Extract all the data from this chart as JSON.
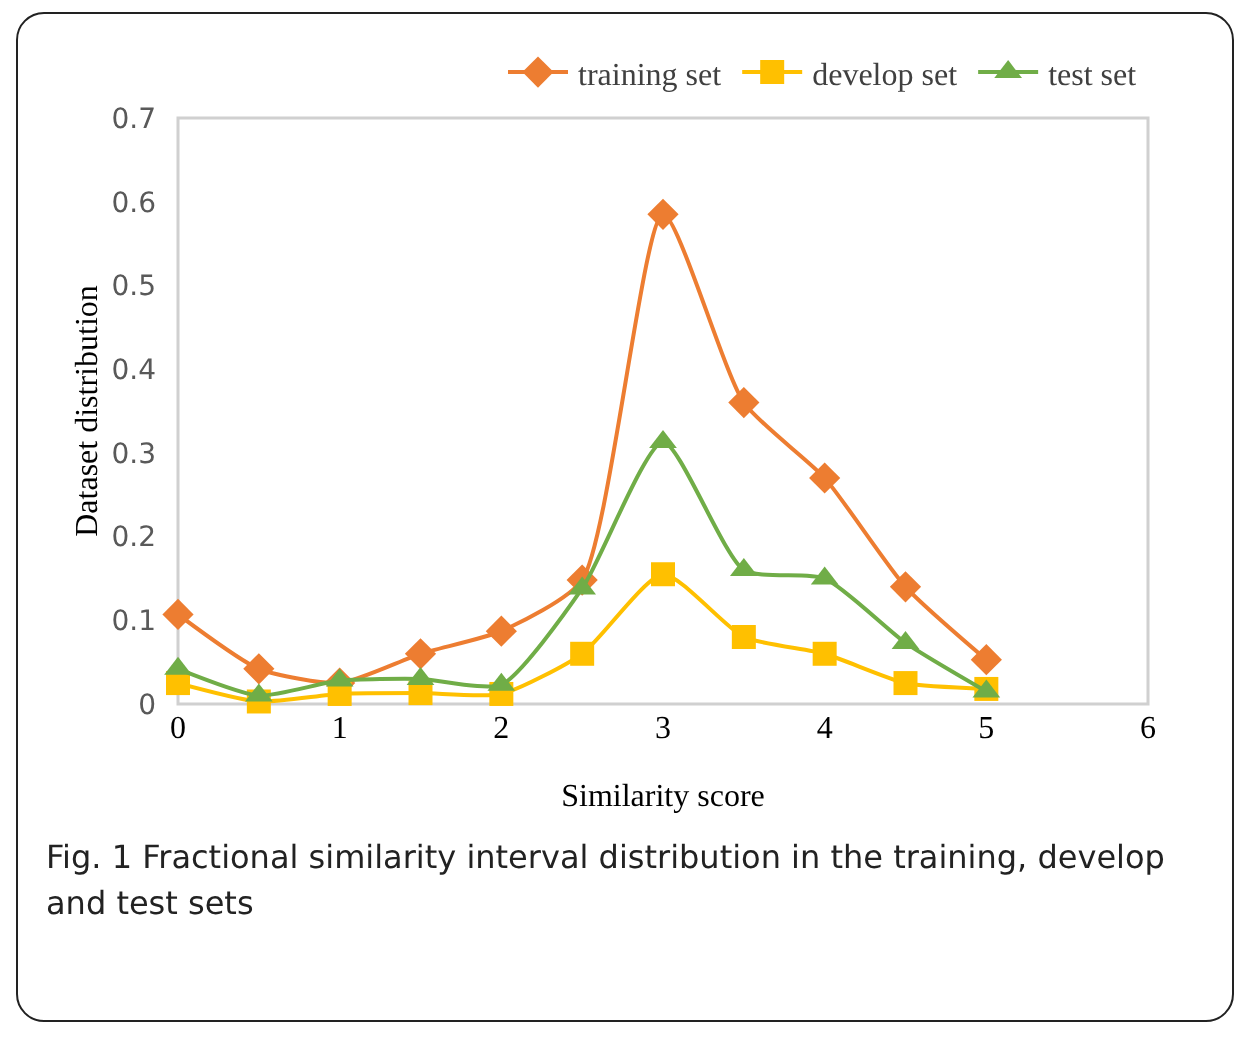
{
  "chart_data": {
    "type": "line",
    "xlabel": "Similarity score",
    "ylabel": "Dataset distribution",
    "x": [
      0,
      0.5,
      1,
      1.5,
      2,
      2.5,
      3,
      3.5,
      4,
      4.5,
      5
    ],
    "series": [
      {
        "name": "training set",
        "color": "#ed7d31",
        "marker": "diamond",
        "values": [
          0.107,
          0.042,
          0.025,
          0.06,
          0.087,
          0.148,
          0.585,
          0.36,
          0.27,
          0.14,
          0.053
        ]
      },
      {
        "name": "develop set",
        "color": "#ffc000",
        "marker": "square",
        "values": [
          0.025,
          0.003,
          0.012,
          0.013,
          0.012,
          0.06,
          0.155,
          0.08,
          0.06,
          0.025,
          0.018
        ]
      },
      {
        "name": "test set",
        "color": "#70ad47",
        "marker": "triangle",
        "values": [
          0.042,
          0.01,
          0.028,
          0.03,
          0.023,
          0.138,
          0.313,
          0.16,
          0.15,
          0.073,
          0.015
        ]
      }
    ],
    "xlim": [
      0,
      6
    ],
    "xticks": [
      0,
      1,
      2,
      3,
      4,
      5,
      6
    ],
    "ylim": [
      0,
      0.7
    ],
    "yticks": [
      0,
      0.1,
      0.2,
      0.3,
      0.4,
      0.5,
      0.6,
      0.7
    ],
    "grid": false,
    "legend": "top",
    "line_style": "solid",
    "annotations": [
      "Fig. 1 Fractional similarity interval distribution in the training, develop and test sets"
    ]
  }
}
